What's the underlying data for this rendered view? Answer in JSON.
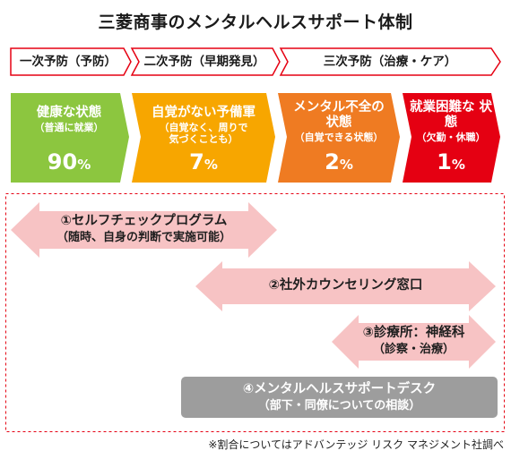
{
  "title": "三菱商事のメンタルヘルスサポート体制",
  "prevention": [
    {
      "label": "一次予防（予防）"
    },
    {
      "label": "二次予防（早期発見）"
    },
    {
      "label": "三次予防（治療・ケア）"
    }
  ],
  "states": [
    {
      "label": "健康な状態",
      "sub": "（普通に就業）",
      "percent": "90",
      "unit": "%",
      "color": "#8cc63f"
    },
    {
      "label": "自覚がない予備軍",
      "sub": "（自覚なく、周りで 気づくことも）",
      "percent": "7",
      "unit": "%",
      "color": "#f7a600"
    },
    {
      "label": "メンタル不全の 状態",
      "sub": "（自覚できる状態）",
      "percent": "2",
      "unit": "%",
      "color": "#ef7b22"
    },
    {
      "label": "就業困難な 状態",
      "sub": "（欠勤・休職）",
      "percent": "1",
      "unit": "%",
      "color": "#e50012"
    }
  ],
  "programs": [
    {
      "name": "①セルフチェックプログラム",
      "detail": "（随時、自身の判断で実施可能）"
    },
    {
      "name": "②社外カウンセリング窓口",
      "detail": ""
    },
    {
      "name": "③診療所：神経科",
      "detail": "（診察・治療）"
    },
    {
      "name": "④メンタルヘルスサポートデスク",
      "detail": "（部下・同僚についての相談）"
    }
  ],
  "colors": {
    "accent_red": "#e50012",
    "arrow_pink": "#f7c3c4",
    "desk_gray": "#9d9d9d"
  },
  "footnote": "※割合についてはアドバンテッジ リスク マネジメント社調べ"
}
